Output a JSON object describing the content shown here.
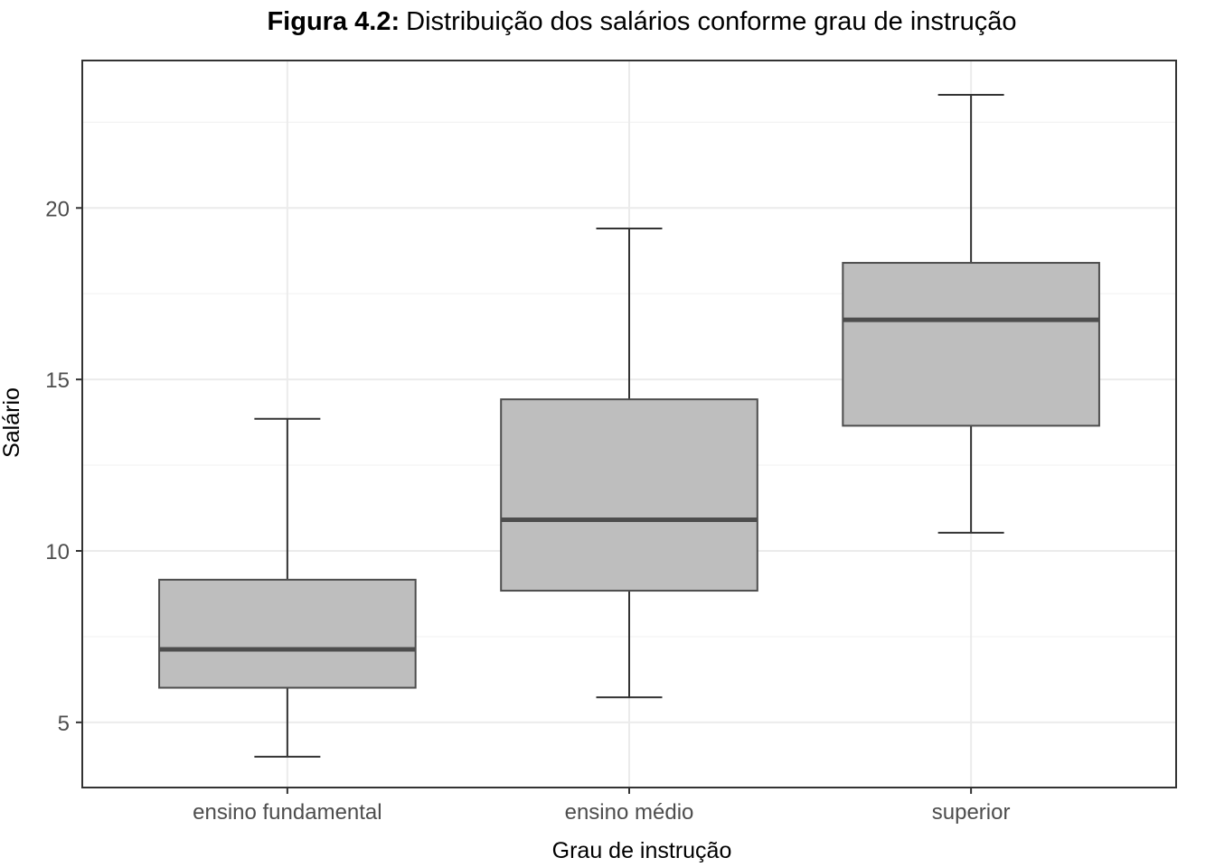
{
  "chart_data": {
    "type": "boxplot",
    "title_prefix": "Figura 4.2:",
    "title_text": "Distribuição dos salários conforme grau de instrução",
    "xlabel": "Grau de instrução",
    "ylabel": "Salário",
    "categories": [
      "ensino fundamental",
      "ensino médio",
      "superior"
    ],
    "boxes": [
      {
        "category": "ensino fundamental",
        "min": 4.0,
        "q1": 6.01,
        "median": 7.13,
        "q3": 9.16,
        "max": 13.85
      },
      {
        "category": "ensino médio",
        "min": 5.73,
        "q1": 8.84,
        "median": 10.91,
        "q3": 14.42,
        "max": 19.4
      },
      {
        "category": "superior",
        "min": 10.53,
        "q1": 13.65,
        "median": 16.74,
        "q3": 18.4,
        "max": 23.3
      }
    ],
    "ylim": [
      3.1,
      24.3
    ],
    "yticks": [
      5,
      10,
      15,
      20
    ],
    "ytick_labels": [
      "5",
      "10",
      "15",
      "20"
    ],
    "grid": true,
    "colors": {
      "box_fill": "#bebebe",
      "box_stroke": "#4d4d4d",
      "median": "#4d4d4d",
      "whisker": "#333333",
      "grid_major": "#ebebeb",
      "grid_minor": "#f3f3f3",
      "panel_border": "#333333",
      "tick_text": "#4d4d4d"
    }
  }
}
